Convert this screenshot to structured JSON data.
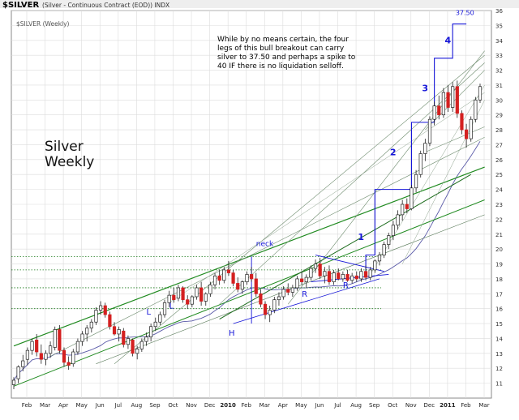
{
  "header": {
    "symbol": "$SILVER",
    "description": "(Silver - Continuous Contract (EOD)) INDX",
    "legend_label": "$SILVER (Weekly)"
  },
  "chart_data": {
    "type": "candlestick",
    "title": "Silver Weekly",
    "title_lines": [
      "Silver",
      "Weekly"
    ],
    "annotation": [
      "While by no means certain, the four",
      "legs of this bull breakout can carry",
      "silver to 37.50 and perhaps a spike to",
      "40 IF there is no liquidation selloff."
    ],
    "ylim": [
      10,
      36
    ],
    "y_ticks": [
      11,
      12,
      13,
      14,
      15,
      16,
      17,
      18,
      19,
      20,
      21,
      22,
      23,
      24,
      25,
      26,
      27,
      28,
      29,
      30,
      31,
      32,
      33,
      34,
      35,
      36
    ],
    "x_ticks": [
      "Feb",
      "Mar",
      "Apr",
      "May",
      "Jun",
      "Jul",
      "Aug",
      "Sep",
      "Oct",
      "Nov",
      "Dec",
      "2010",
      "Feb",
      "Mar",
      "Apr",
      "May",
      "Jun",
      "Jul",
      "Aug",
      "Sep",
      "Oct",
      "Nov",
      "Dec",
      "2011",
      "Feb",
      "Mar"
    ],
    "bold_ticks": [
      "2010",
      "2011"
    ],
    "target_label": "37.50",
    "leg_labels": [
      "1",
      "2",
      "3",
      "4"
    ],
    "pattern_labels": [
      "L",
      "L",
      "H",
      "neck",
      "R",
      "R"
    ],
    "colors": {
      "up": "#ffffff",
      "down": "#d42020",
      "outline": "#222222",
      "trend_green": "#1f8a1f",
      "target_blue": "#1515d8",
      "grid": "#dcdcdc"
    },
    "candles": [
      {
        "o": 10.9,
        "h": 11.4,
        "l": 10.6,
        "c": 11.2
      },
      {
        "o": 11.3,
        "h": 12.2,
        "l": 11.0,
        "c": 12.1
      },
      {
        "o": 12.1,
        "h": 12.9,
        "l": 11.8,
        "c": 12.5
      },
      {
        "o": 12.6,
        "h": 13.4,
        "l": 12.2,
        "c": 13.2
      },
      {
        "o": 13.2,
        "h": 14.0,
        "l": 12.9,
        "c": 13.8
      },
      {
        "o": 13.9,
        "h": 14.3,
        "l": 12.8,
        "c": 13.1
      },
      {
        "o": 13.0,
        "h": 13.6,
        "l": 12.3,
        "c": 12.6
      },
      {
        "o": 12.6,
        "h": 13.2,
        "l": 12.2,
        "c": 13.0
      },
      {
        "o": 13.0,
        "h": 13.8,
        "l": 12.7,
        "c": 13.5
      },
      {
        "o": 13.4,
        "h": 14.8,
        "l": 13.2,
        "c": 14.6
      },
      {
        "o": 14.6,
        "h": 14.9,
        "l": 13.0,
        "c": 13.2
      },
      {
        "o": 13.2,
        "h": 13.4,
        "l": 12.1,
        "c": 12.4
      },
      {
        "o": 12.4,
        "h": 12.8,
        "l": 11.9,
        "c": 12.2
      },
      {
        "o": 12.3,
        "h": 13.3,
        "l": 12.1,
        "c": 13.1
      },
      {
        "o": 13.1,
        "h": 14.0,
        "l": 12.9,
        "c": 13.8
      },
      {
        "o": 13.8,
        "h": 14.5,
        "l": 13.5,
        "c": 14.3
      },
      {
        "o": 14.3,
        "h": 14.9,
        "l": 13.8,
        "c": 14.7
      },
      {
        "o": 14.7,
        "h": 15.3,
        "l": 14.4,
        "c": 15.1
      },
      {
        "o": 15.1,
        "h": 16.1,
        "l": 14.9,
        "c": 15.9
      },
      {
        "o": 15.9,
        "h": 16.5,
        "l": 15.6,
        "c": 16.2
      },
      {
        "o": 16.2,
        "h": 16.4,
        "l": 15.4,
        "c": 15.6
      },
      {
        "o": 15.6,
        "h": 15.8,
        "l": 14.6,
        "c": 14.8
      },
      {
        "o": 14.8,
        "h": 15.1,
        "l": 14.2,
        "c": 14.3
      },
      {
        "o": 14.3,
        "h": 14.8,
        "l": 13.8,
        "c": 14.6
      },
      {
        "o": 14.5,
        "h": 14.7,
        "l": 13.4,
        "c": 13.6
      },
      {
        "o": 13.6,
        "h": 14.2,
        "l": 13.3,
        "c": 14.0
      },
      {
        "o": 13.9,
        "h": 14.0,
        "l": 12.8,
        "c": 13.0
      },
      {
        "o": 13.0,
        "h": 13.5,
        "l": 12.6,
        "c": 13.3
      },
      {
        "o": 13.3,
        "h": 14.0,
        "l": 13.1,
        "c": 13.8
      },
      {
        "o": 13.8,
        "h": 14.4,
        "l": 13.5,
        "c": 14.1
      },
      {
        "o": 14.1,
        "h": 15.0,
        "l": 13.8,
        "c": 14.8
      },
      {
        "o": 14.8,
        "h": 15.4,
        "l": 14.5,
        "c": 15.1
      },
      {
        "o": 15.1,
        "h": 15.8,
        "l": 14.9,
        "c": 15.6
      },
      {
        "o": 15.6,
        "h": 16.6,
        "l": 15.4,
        "c": 16.4
      },
      {
        "o": 16.4,
        "h": 17.2,
        "l": 16.1,
        "c": 16.9
      },
      {
        "o": 16.9,
        "h": 17.4,
        "l": 16.4,
        "c": 16.6
      },
      {
        "o": 16.7,
        "h": 17.6,
        "l": 16.5,
        "c": 17.4
      },
      {
        "o": 17.4,
        "h": 17.5,
        "l": 16.4,
        "c": 16.6
      },
      {
        "o": 16.6,
        "h": 16.9,
        "l": 16.0,
        "c": 16.3
      },
      {
        "o": 16.3,
        "h": 16.9,
        "l": 16.1,
        "c": 16.8
      },
      {
        "o": 16.8,
        "h": 17.6,
        "l": 16.6,
        "c": 17.4
      },
      {
        "o": 17.4,
        "h": 17.8,
        "l": 16.2,
        "c": 16.5
      },
      {
        "o": 16.5,
        "h": 17.1,
        "l": 16.2,
        "c": 17.0
      },
      {
        "o": 17.0,
        "h": 17.8,
        "l": 16.8,
        "c": 17.6
      },
      {
        "o": 17.6,
        "h": 18.4,
        "l": 17.3,
        "c": 18.2
      },
      {
        "o": 18.2,
        "h": 18.6,
        "l": 17.6,
        "c": 17.9
      },
      {
        "o": 17.9,
        "h": 18.8,
        "l": 17.7,
        "c": 18.6
      },
      {
        "o": 18.6,
        "h": 19.2,
        "l": 18.2,
        "c": 18.4
      },
      {
        "o": 18.4,
        "h": 18.6,
        "l": 17.5,
        "c": 17.7
      },
      {
        "o": 17.7,
        "h": 18.1,
        "l": 17.1,
        "c": 17.3
      },
      {
        "o": 17.3,
        "h": 17.9,
        "l": 17.0,
        "c": 17.8
      },
      {
        "o": 17.8,
        "h": 18.5,
        "l": 17.6,
        "c": 18.3
      },
      {
        "o": 18.3,
        "h": 18.8,
        "l": 17.8,
        "c": 18.0
      },
      {
        "o": 18.0,
        "h": 18.4,
        "l": 16.8,
        "c": 17.0
      },
      {
        "o": 17.0,
        "h": 17.3,
        "l": 16.1,
        "c": 16.3
      },
      {
        "o": 16.3,
        "h": 16.5,
        "l": 15.3,
        "c": 15.6
      },
      {
        "o": 15.6,
        "h": 16.2,
        "l": 15.1,
        "c": 15.9
      },
      {
        "o": 15.9,
        "h": 16.8,
        "l": 15.7,
        "c": 16.6
      },
      {
        "o": 16.6,
        "h": 17.1,
        "l": 16.2,
        "c": 16.8
      },
      {
        "o": 16.8,
        "h": 17.5,
        "l": 16.6,
        "c": 17.3
      },
      {
        "o": 17.3,
        "h": 17.7,
        "l": 16.9,
        "c": 17.1
      },
      {
        "o": 17.1,
        "h": 17.6,
        "l": 16.8,
        "c": 17.4
      },
      {
        "o": 17.4,
        "h": 18.2,
        "l": 17.2,
        "c": 18.0
      },
      {
        "o": 18.0,
        "h": 18.5,
        "l": 17.6,
        "c": 17.8
      },
      {
        "o": 17.8,
        "h": 18.3,
        "l": 17.4,
        "c": 18.1
      },
      {
        "o": 18.1,
        "h": 18.9,
        "l": 17.9,
        "c": 18.7
      },
      {
        "o": 18.7,
        "h": 19.3,
        "l": 18.4,
        "c": 19.0
      },
      {
        "o": 19.0,
        "h": 19.4,
        "l": 18.0,
        "c": 18.2
      },
      {
        "o": 18.2,
        "h": 18.8,
        "l": 17.7,
        "c": 18.5
      },
      {
        "o": 18.5,
        "h": 18.9,
        "l": 17.6,
        "c": 17.8
      },
      {
        "o": 17.8,
        "h": 18.6,
        "l": 17.6,
        "c": 18.4
      },
      {
        "o": 18.4,
        "h": 18.7,
        "l": 17.9,
        "c": 18.0
      },
      {
        "o": 18.0,
        "h": 18.5,
        "l": 17.8,
        "c": 18.3
      },
      {
        "o": 18.3,
        "h": 18.6,
        "l": 17.8,
        "c": 17.9
      },
      {
        "o": 17.9,
        "h": 18.4,
        "l": 17.7,
        "c": 18.2
      },
      {
        "o": 18.2,
        "h": 18.5,
        "l": 17.8,
        "c": 18.0
      },
      {
        "o": 18.0,
        "h": 18.7,
        "l": 17.8,
        "c": 18.5
      },
      {
        "o": 18.5,
        "h": 18.9,
        "l": 17.9,
        "c": 18.1
      },
      {
        "o": 18.1,
        "h": 18.8,
        "l": 17.9,
        "c": 18.6
      },
      {
        "o": 18.6,
        "h": 19.3,
        "l": 18.4,
        "c": 19.2
      },
      {
        "o": 19.2,
        "h": 19.8,
        "l": 18.9,
        "c": 19.6
      },
      {
        "o": 19.6,
        "h": 20.5,
        "l": 19.4,
        "c": 20.3
      },
      {
        "o": 20.3,
        "h": 21.1,
        "l": 20.0,
        "c": 20.9
      },
      {
        "o": 20.9,
        "h": 21.9,
        "l": 20.6,
        "c": 21.6
      },
      {
        "o": 21.6,
        "h": 22.6,
        "l": 21.3,
        "c": 22.3
      },
      {
        "o": 22.3,
        "h": 23.3,
        "l": 21.9,
        "c": 23.0
      },
      {
        "o": 23.0,
        "h": 23.4,
        "l": 22.4,
        "c": 22.7
      },
      {
        "o": 22.7,
        "h": 24.3,
        "l": 22.6,
        "c": 24.1
      },
      {
        "o": 24.1,
        "h": 25.3,
        "l": 23.8,
        "c": 25.0
      },
      {
        "o": 25.0,
        "h": 26.6,
        "l": 24.8,
        "c": 26.4
      },
      {
        "o": 26.4,
        "h": 27.4,
        "l": 25.9,
        "c": 27.1
      },
      {
        "o": 27.1,
        "h": 28.9,
        "l": 26.9,
        "c": 28.7
      },
      {
        "o": 28.7,
        "h": 29.9,
        "l": 28.3,
        "c": 29.6
      },
      {
        "o": 29.6,
        "h": 30.3,
        "l": 28.7,
        "c": 29.0
      },
      {
        "o": 29.0,
        "h": 30.8,
        "l": 28.8,
        "c": 30.5
      },
      {
        "o": 30.5,
        "h": 31.0,
        "l": 29.2,
        "c": 29.5
      },
      {
        "o": 29.5,
        "h": 31.2,
        "l": 29.2,
        "c": 30.9
      },
      {
        "o": 30.9,
        "h": 31.3,
        "l": 28.8,
        "c": 29.1
      },
      {
        "o": 29.1,
        "h": 29.3,
        "l": 27.7,
        "c": 28.0
      },
      {
        "o": 28.0,
        "h": 28.4,
        "l": 26.8,
        "c": 27.4
      },
      {
        "o": 27.4,
        "h": 28.9,
        "l": 27.2,
        "c": 28.7
      },
      {
        "o": 28.7,
        "h": 30.2,
        "l": 28.5,
        "c": 30.0
      },
      {
        "o": 30.0,
        "h": 31.1,
        "l": 29.8,
        "c": 30.9
      }
    ]
  }
}
